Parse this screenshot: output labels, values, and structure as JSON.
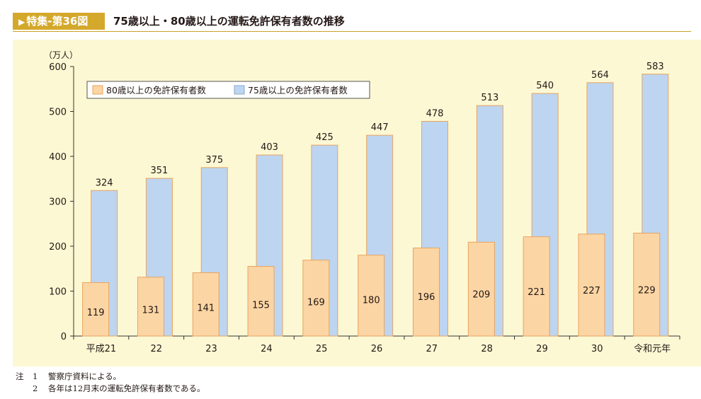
{
  "header": {
    "badge": "特集-第36図",
    "title": "75歳以上・80歳以上の運転免許保有者数の推移"
  },
  "colors": {
    "bar80": "#fcd5a4",
    "bar80_stroke": "#e8a45e",
    "bar75": "#bdd5f0",
    "bar75_stroke": "#e8a45e",
    "badge": "#d4a82a",
    "plot_bg": "#fdf8d4"
  },
  "chart_data": {
    "type": "bar",
    "y_unit": "（万人）",
    "ylim": [
      0,
      600
    ],
    "yticks": [
      0,
      100,
      200,
      300,
      400,
      500,
      600
    ],
    "legend_position": "top-left",
    "categories": [
      "平成21",
      "22",
      "23",
      "24",
      "25",
      "26",
      "27",
      "28",
      "29",
      "30",
      "令和元年"
    ],
    "series": [
      {
        "name": "80歳以上の免許保有者数",
        "values": [
          119,
          131,
          141,
          155,
          169,
          180,
          196,
          209,
          221,
          227,
          229
        ]
      },
      {
        "name": "75歳以上の免許保有者数",
        "values": [
          324,
          351,
          375,
          403,
          425,
          447,
          478,
          513,
          540,
          564,
          583
        ]
      }
    ]
  },
  "notes": {
    "prefix": "注",
    "items": [
      {
        "num": "1",
        "text": "警察庁資料による。"
      },
      {
        "num": "2",
        "text": "各年は12月末の運転免許保有者数である。"
      }
    ]
  }
}
